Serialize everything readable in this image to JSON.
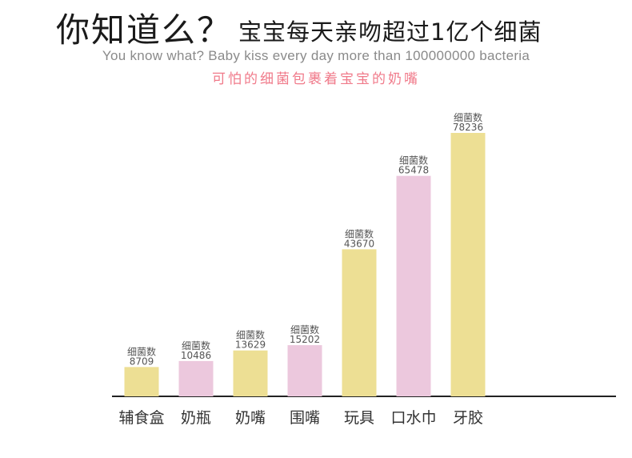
{
  "header": {
    "title_main": "你知道么？",
    "title_sub": "宝宝每天亲吻超过1亿个细菌",
    "subtitle_en": "You know what? Baby kiss every day more than 100000000 bacteria",
    "subtitle_cn": "可怕的细菌包裹着宝宝的奶嘴"
  },
  "chart_data": {
    "type": "bar",
    "categories": [
      "辅食盒",
      "奶瓶",
      "奶嘴",
      "围嘴",
      "玩具",
      "口水巾",
      "牙胶"
    ],
    "values": [
      8709,
      10486,
      13629,
      15202,
      43670,
      65478,
      78236
    ],
    "value_prefix": "细菌数",
    "bar_colors": [
      "#eddf94",
      "#ecc8dd",
      "#eddf94",
      "#ecc8dd",
      "#eddf94",
      "#ecc8dd",
      "#eddf94"
    ],
    "axis_color": "#222222",
    "grid": false,
    "legend": "none"
  }
}
